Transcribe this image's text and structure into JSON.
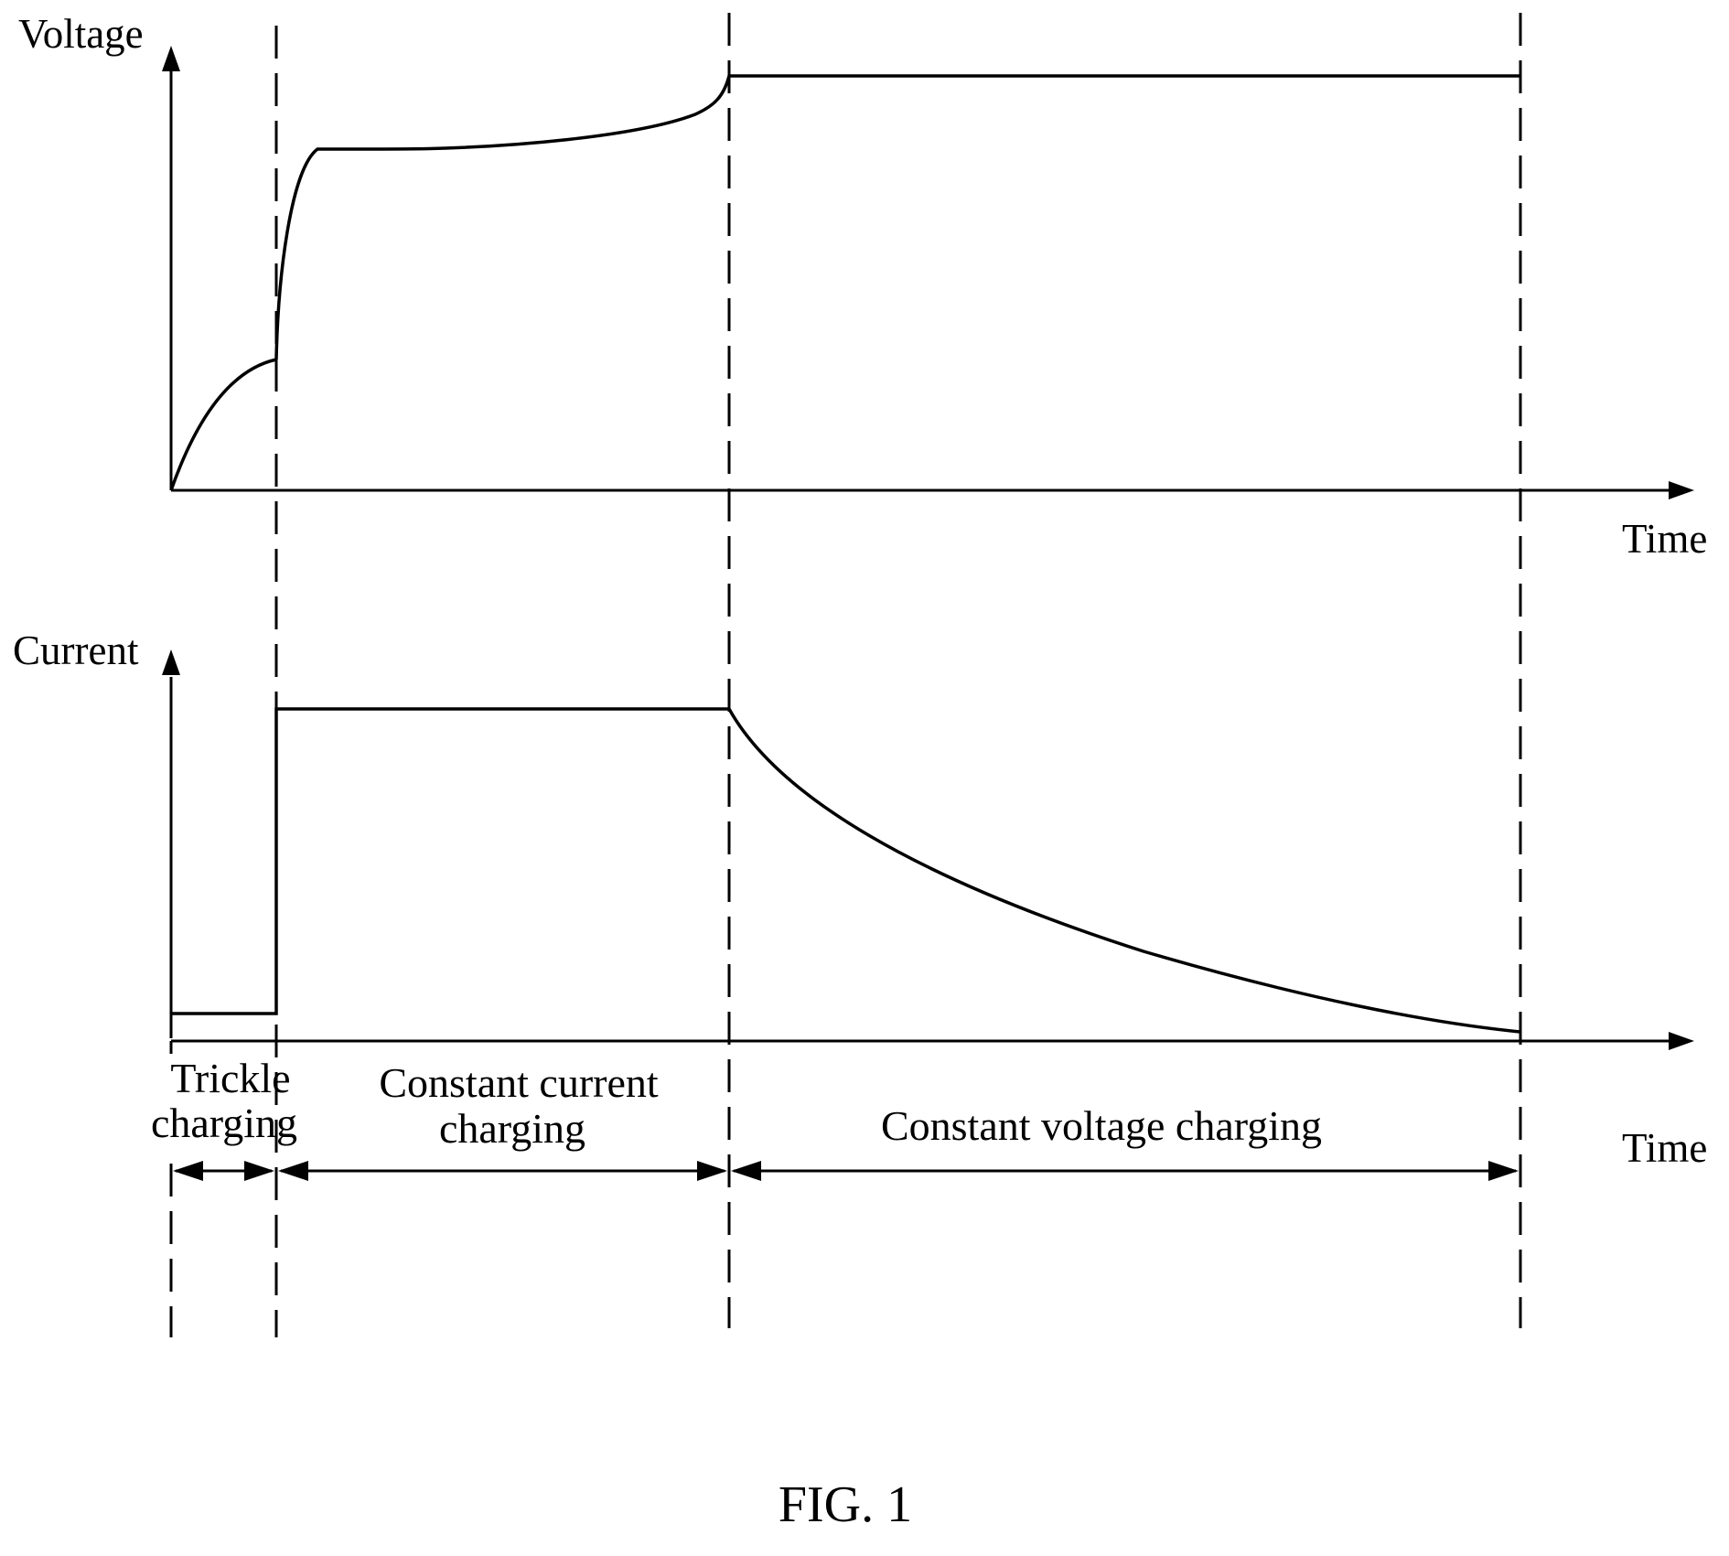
{
  "figure": {
    "caption": "FIG. 1"
  },
  "voltage_plot": {
    "y_axis_label": "Voltage",
    "x_axis_label": "Time"
  },
  "current_plot": {
    "y_axis_label": "Current",
    "x_axis_label": "Time"
  },
  "phases": [
    {
      "line1": "Trickle",
      "line2": "charging"
    },
    {
      "line1": "Constant current",
      "line2": "charging"
    },
    {
      "line1": "Constant voltage charging"
    }
  ],
  "colors": {
    "ink": "#000000",
    "background": "#ffffff"
  }
}
